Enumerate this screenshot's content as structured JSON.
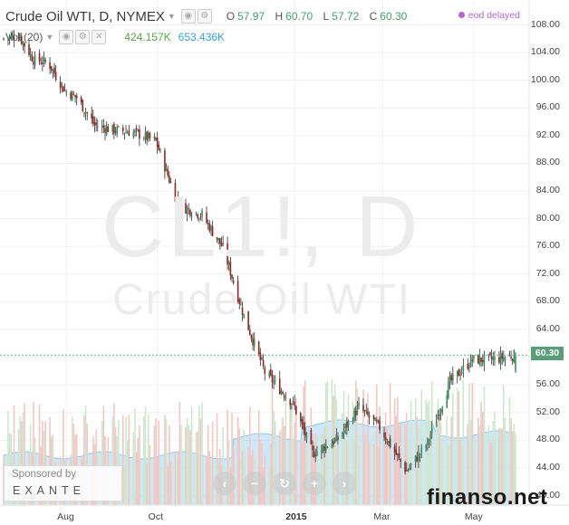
{
  "header": {
    "symbol_title": "Crude Oil WTI, D, NYMEX",
    "dropdown_icon": "triangle-down",
    "ohlc": [
      {
        "key": "O",
        "value": "57.97"
      },
      {
        "key": "H",
        "value": "60.70"
      },
      {
        "key": "L",
        "value": "57.72"
      },
      {
        "key": "C",
        "value": "60.30"
      }
    ]
  },
  "status": {
    "eod_label": "eod delayed",
    "dot_color": "#b467c9"
  },
  "volume_legend": {
    "label": "Vol (20)",
    "volume": "424.157K",
    "ma": "653.436K"
  },
  "watermark": {
    "big": "CL1!, D",
    "small": "Crude Oil WTI"
  },
  "price_axis": [
    "108.00",
    "104.00",
    "100.00",
    "96.00",
    "92.00",
    "88.00",
    "84.00",
    "80.00",
    "76.00",
    "72.00",
    "68.00",
    "64.00",
    "60.00",
    "56.00",
    "52.00",
    "48.00",
    "44.00",
    "40.00"
  ],
  "last_price": "60.30",
  "time_axis": [
    {
      "label": "Aug",
      "bold": false
    },
    {
      "label": "Oct",
      "bold": false
    },
    {
      "label": "2015",
      "bold": true
    },
    {
      "label": "Mar",
      "bold": false
    },
    {
      "label": "May",
      "bold": false
    }
  ],
  "sponsor": {
    "line1": "Sponsored by",
    "line2": "EXANTE"
  },
  "nav_buttons": [
    {
      "name": "scroll-left",
      "glyph": "‹"
    },
    {
      "name": "zoom-out",
      "glyph": "−"
    },
    {
      "name": "reset",
      "glyph": "↻"
    },
    {
      "name": "zoom-in",
      "glyph": "+"
    },
    {
      "name": "scroll-right",
      "glyph": "›"
    }
  ],
  "site_watermark": "finanso.net",
  "colors": {
    "up": "#3e8f5e",
    "down": "#8b2a22",
    "volume_up": "#cfe7d0",
    "volume_down": "#f0c8c4",
    "volume_ma_fill": "#a8d6f2",
    "last_price_bg": "#5a9e77"
  },
  "chart_data": {
    "type": "candlestick",
    "x_range": [
      "2014-06-20",
      "2015-05-29"
    ],
    "ylim": [
      40,
      110
    ],
    "y_ticks": [
      108,
      104,
      100,
      96,
      92,
      88,
      84,
      80,
      76,
      72,
      68,
      64,
      60,
      56,
      52,
      48,
      44,
      40
    ],
    "last_price": 60.3,
    "close_path": [
      {
        "date": "2014-06-20",
        "close": 106.0
      },
      {
        "date": "2014-06-30",
        "close": 106.5
      },
      {
        "date": "2014-07-10",
        "close": 103.0
      },
      {
        "date": "2014-07-20",
        "close": 102.5
      },
      {
        "date": "2014-07-31",
        "close": 98.5
      },
      {
        "date": "2014-08-08",
        "close": 97.5
      },
      {
        "date": "2014-08-20",
        "close": 93.5
      },
      {
        "date": "2014-09-02",
        "close": 92.8
      },
      {
        "date": "2014-09-15",
        "close": 92.5
      },
      {
        "date": "2014-09-30",
        "close": 91.2
      },
      {
        "date": "2014-10-15",
        "close": 82.0
      },
      {
        "date": "2014-10-31",
        "close": 80.5
      },
      {
        "date": "2014-11-14",
        "close": 75.8
      },
      {
        "date": "2014-11-28",
        "close": 66.0
      },
      {
        "date": "2014-12-12",
        "close": 57.8
      },
      {
        "date": "2014-12-31",
        "close": 53.3
      },
      {
        "date": "2015-01-13",
        "close": 46.1
      },
      {
        "date": "2015-01-30",
        "close": 48.2
      },
      {
        "date": "2015-02-13",
        "close": 52.8
      },
      {
        "date": "2015-02-27",
        "close": 49.8
      },
      {
        "date": "2015-03-17",
        "close": 43.5
      },
      {
        "date": "2015-03-31",
        "close": 47.6
      },
      {
        "date": "2015-04-15",
        "close": 56.4
      },
      {
        "date": "2015-04-30",
        "close": 59.6
      },
      {
        "date": "2015-05-15",
        "close": 59.7
      },
      {
        "date": "2015-05-29",
        "close": 60.3
      }
    ],
    "series": [
      {
        "name": "Vol (20)",
        "kind": "volume-bars",
        "last": "424.157K"
      },
      {
        "name": "volume MA",
        "kind": "area",
        "last": "653.436K"
      }
    ]
  }
}
